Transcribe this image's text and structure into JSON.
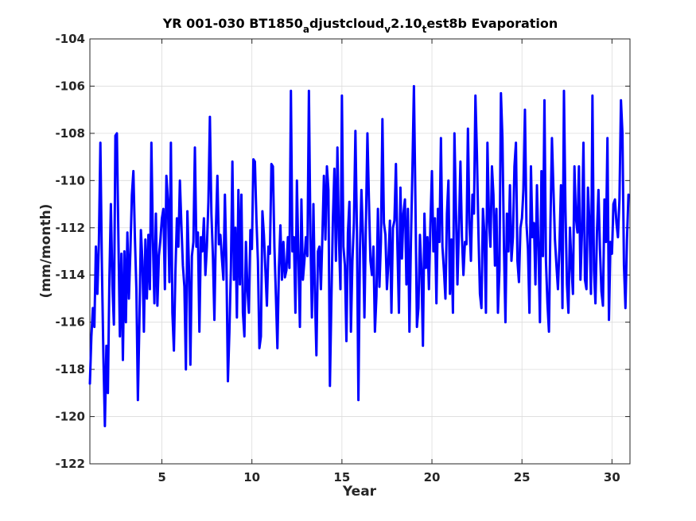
{
  "chart_data": {
    "type": "line",
    "title": "YR 001-030 BT1850_adjustcloud_v2.10_test8b Evaporation",
    "title_parts": {
      "part1": "YR 001-030 BT1850",
      "sub1": "a",
      "part2": "djustcloud",
      "sub2": "v",
      "part3": "2.10",
      "sub3": "t",
      "part4": "est8b Evaporation"
    },
    "xlabel": "Year",
    "ylabel": "(mm/month)",
    "xlim": [
      1,
      31
    ],
    "ylim": [
      -122,
      -104
    ],
    "xticks": [
      5,
      10,
      15,
      20,
      25,
      30
    ],
    "xtick_labels": [
      "5",
      "10",
      "15",
      "20",
      "25",
      "30"
    ],
    "yticks": [
      -122,
      -120,
      -118,
      -116,
      -114,
      -112,
      -110,
      -108,
      -106,
      -104
    ],
    "ytick_labels": [
      "-122",
      "-120",
      "-118",
      "-116",
      "-114",
      "-112",
      "-110",
      "-108",
      "-106",
      "-104"
    ],
    "grid": true,
    "line_color": "#0000ff",
    "series": [
      {
        "x_start": 1.0,
        "x_step": 0.08333,
        "values": [
          -118.6,
          -116.6,
          -115.4,
          -116.2,
          -112.8,
          -114.8,
          -112.6,
          -108.4,
          -113.6,
          -117.4,
          -120.4,
          -117.0,
          -119.0,
          -114.2,
          -111.0,
          -114.4,
          -116.1,
          -108.1,
          -108.0,
          -112.4,
          -116.6,
          -113.1,
          -117.6,
          -113.0,
          -116.0,
          -112.2,
          -115.0,
          -113.0,
          -110.6,
          -109.6,
          -112.4,
          -114.6,
          -119.3,
          -116.0,
          -112.1,
          -113.4,
          -116.4,
          -112.5,
          -115.0,
          -112.3,
          -114.6,
          -108.4,
          -112.5,
          -115.2,
          -111.4,
          -115.3,
          -113.2,
          -112.5,
          -111.6,
          -111.2,
          -114.6,
          -109.8,
          -110.8,
          -114.3,
          -108.4,
          -115.6,
          -117.2,
          -113.9,
          -111.6,
          -112.8,
          -110.0,
          -111.9,
          -113.6,
          -114.5,
          -118.0,
          -111.3,
          -113.6,
          -117.8,
          -113.2,
          -112.6,
          -108.6,
          -112.8,
          -112.2,
          -116.4,
          -112.4,
          -113.0,
          -111.6,
          -114.0,
          -112.8,
          -110.9,
          -107.3,
          -111.4,
          -113.2,
          -115.9,
          -112.0,
          -109.8,
          -112.7,
          -112.3,
          -113.3,
          -114.2,
          -110.6,
          -113.5,
          -118.5,
          -116.4,
          -113.7,
          -109.2,
          -114.2,
          -112.0,
          -115.8,
          -110.4,
          -114.4,
          -110.6,
          -115.6,
          -116.6,
          -112.6,
          -114.6,
          -115.6,
          -112.1,
          -112.9,
          -109.1,
          -109.2,
          -111.6,
          -113.4,
          -117.1,
          -116.6,
          -111.3,
          -112.3,
          -113.8,
          -115.3,
          -112.8,
          -113.1,
          -109.3,
          -109.4,
          -112.8,
          -114.9,
          -117.1,
          -113.7,
          -111.9,
          -114.2,
          -112.6,
          -114.1,
          -113.8,
          -112.4,
          -113.7,
          -106.2,
          -113.0,
          -112.4,
          -115.6,
          -110.0,
          -113.3,
          -116.2,
          -110.8,
          -114.2,
          -113.4,
          -112.4,
          -113.2,
          -106.2,
          -112.3,
          -115.8,
          -111.0,
          -114.8,
          -117.4,
          -113.0,
          -112.8,
          -114.6,
          -112.3,
          -109.8,
          -112.5,
          -109.4,
          -110.4,
          -118.7,
          -115.0,
          -111.6,
          -109.5,
          -113.4,
          -108.6,
          -112.4,
          -114.6,
          -106.4,
          -112.8,
          -113.6,
          -116.8,
          -112.2,
          -110.9,
          -116.4,
          -113.4,
          -111.8,
          -107.9,
          -112.1,
          -119.3,
          -113.0,
          -110.4,
          -112.3,
          -115.8,
          -111.8,
          -108.0,
          -110.8,
          -113.4,
          -114.0,
          -112.8,
          -116.4,
          -114.9,
          -111.2,
          -114.5,
          -112.6,
          -107.4,
          -111.8,
          -112.3,
          -114.6,
          -113.4,
          -111.7,
          -115.6,
          -112.0,
          -111.7,
          -109.3,
          -112.8,
          -115.6,
          -110.3,
          -113.3,
          -111.4,
          -110.8,
          -114.4,
          -111.2,
          -116.4,
          -112.6,
          -109.5,
          -106.0,
          -110.9,
          -116.2,
          -115.4,
          -112.3,
          -113.8,
          -117.0,
          -111.4,
          -113.7,
          -112.4,
          -114.6,
          -111.8,
          -109.6,
          -113.0,
          -111.6,
          -115.2,
          -111.2,
          -112.6,
          -108.2,
          -112.8,
          -113.8,
          -115.0,
          -111.4,
          -110.0,
          -114.8,
          -112.5,
          -115.6,
          -108.0,
          -111.2,
          -114.4,
          -112.0,
          -109.2,
          -112.4,
          -114.0,
          -112.6,
          -112.7,
          -107.8,
          -111.8,
          -113.4,
          -110.6,
          -111.4,
          -106.4,
          -108.9,
          -112.2,
          -114.8,
          -115.4,
          -111.2,
          -112.3,
          -115.6,
          -108.4,
          -111.6,
          -112.8,
          -109.4,
          -110.6,
          -113.6,
          -111.2,
          -115.6,
          -113.8,
          -106.3,
          -108.2,
          -112.8,
          -116.0,
          -111.4,
          -113.0,
          -110.2,
          -113.4,
          -112.4,
          -109.4,
          -108.4,
          -113.4,
          -114.3,
          -112.0,
          -111.6,
          -110.4,
          -107.0,
          -111.8,
          -112.9,
          -115.6,
          -109.4,
          -112.4,
          -111.8,
          -114.4,
          -110.2,
          -112.8,
          -116.0,
          -109.6,
          -113.2,
          -106.6,
          -113.4,
          -115.2,
          -116.4,
          -111.8,
          -108.2,
          -110.4,
          -112.5,
          -113.6,
          -114.6,
          -112.8,
          -110.2,
          -115.4,
          -106.2,
          -111.2,
          -114.4,
          -115.6,
          -112.0,
          -113.6,
          -114.8,
          -109.4,
          -111.6,
          -112.2,
          -109.4,
          -114.2,
          -112.2,
          -108.4,
          -114.2,
          -114.6,
          -110.3,
          -111.8,
          -114.8,
          -106.4,
          -113.8,
          -115.2,
          -112.2,
          -110.4,
          -112.9,
          -114.7,
          -115.3,
          -110.8,
          -112.6,
          -108.2,
          -115.9,
          -112.6,
          -113.1,
          -111.0,
          -110.8,
          -111.8,
          -112.4,
          -110.8,
          -106.6,
          -108.0,
          -113.6,
          -115.4,
          -112.5,
          -110.6
        ]
      }
    ]
  }
}
